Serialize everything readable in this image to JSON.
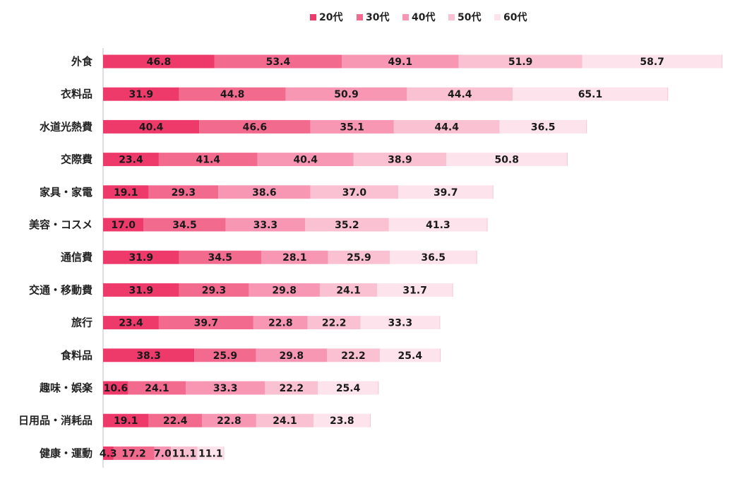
{
  "chart_data": {
    "type": "bar",
    "orientation": "horizontal",
    "stacked": true,
    "title": "",
    "xlabel": "",
    "ylabel": "",
    "xlim": [
      0,
      260
    ],
    "grid": false,
    "legend_position": "top-center",
    "categories": [
      "外食",
      "衣料品",
      "水道光熱費",
      "交際費",
      "家具・家電",
      "美容・コスメ",
      "通信費",
      "交通・移動費",
      "旅行",
      "食料品",
      "趣味・娯楽",
      "日用品・消耗品",
      "健康・運動"
    ],
    "series": [
      {
        "name": "20代",
        "color": "#ee3a6a",
        "values": [
          46.8,
          31.9,
          40.4,
          23.4,
          19.1,
          17.0,
          31.9,
          31.9,
          23.4,
          38.3,
          10.6,
          19.1,
          4.3
        ]
      },
      {
        "name": "30代",
        "color": "#f36a8f",
        "values": [
          53.4,
          44.8,
          46.6,
          41.4,
          29.3,
          34.5,
          34.5,
          29.3,
          39.7,
          25.9,
          24.1,
          22.4,
          17.2
        ]
      },
      {
        "name": "40代",
        "color": "#f797b3",
        "values": [
          49.1,
          50.9,
          35.1,
          40.4,
          38.6,
          33.3,
          28.1,
          29.8,
          22.8,
          29.8,
          33.3,
          22.8,
          7.0
        ]
      },
      {
        "name": "50代",
        "color": "#fac1d2",
        "values": [
          51.9,
          44.4,
          44.4,
          38.9,
          37.0,
          35.2,
          25.9,
          24.1,
          22.2,
          22.2,
          22.2,
          24.1,
          11.1
        ]
      },
      {
        "name": "60代",
        "color": "#fde3eb",
        "values": [
          58.7,
          65.1,
          36.5,
          50.8,
          39.7,
          41.3,
          36.5,
          31.7,
          33.3,
          25.4,
          25.4,
          23.8,
          11.1
        ]
      }
    ]
  }
}
